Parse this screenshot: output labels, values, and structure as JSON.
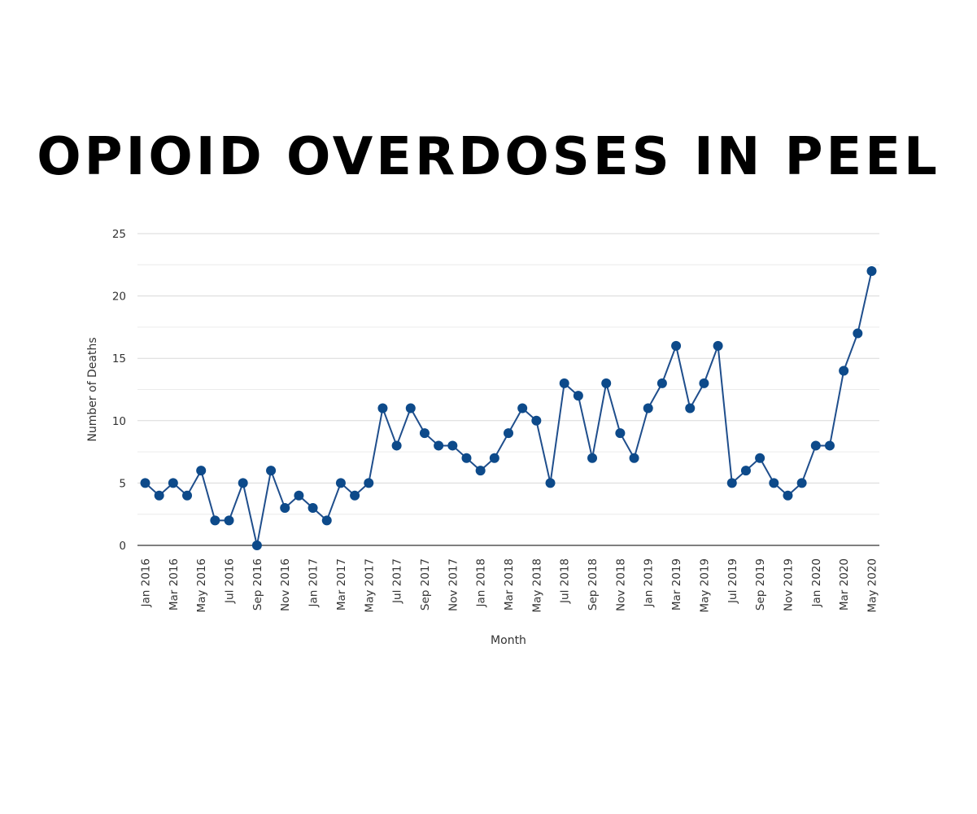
{
  "chart_data": {
    "type": "line",
    "title": "OPIOID OVERDOSES IN PEEL",
    "xlabel": "Month",
    "ylabel": "Number of Deaths",
    "ylim": [
      0,
      25
    ],
    "yticks": [
      0,
      5,
      10,
      15,
      20,
      25
    ],
    "grid": true,
    "x": [
      "Jan 2016",
      "Feb 2016",
      "Mar 2016",
      "Apr 2016",
      "May 2016",
      "Jun 2016",
      "Jul 2016",
      "Aug 2016",
      "Sep 2016",
      "Oct 2016",
      "Nov 2016",
      "Dec 2016",
      "Jan 2017",
      "Feb 2017",
      "Mar 2017",
      "Apr 2017",
      "May 2017",
      "Jun 2017",
      "Jul 2017",
      "Aug 2017",
      "Sep 2017",
      "Oct 2017",
      "Nov 2017",
      "Dec 2017",
      "Jan 2018",
      "Feb 2018",
      "Mar 2018",
      "Apr 2018",
      "May 2018",
      "Jun 2018",
      "Jul 2018",
      "Aug 2018",
      "Sep 2018",
      "Oct 2018",
      "Nov 2018",
      "Dec 2018",
      "Jan 2019",
      "Feb 2019",
      "Mar 2019",
      "Apr 2019",
      "May 2019",
      "Jun 2019",
      "Jul 2019",
      "Aug 2019",
      "Sep 2019",
      "Oct 2019",
      "Nov 2019",
      "Dec 2019",
      "Jan 2020",
      "Feb 2020",
      "Mar 2020",
      "Apr 2020",
      "May 2020"
    ],
    "x_tick_labels": [
      "Jan 2016",
      "Mar 2016",
      "May 2016",
      "Jul 2016",
      "Sep 2016",
      "Nov 2016",
      "Jan 2017",
      "Mar 2017",
      "May 2017",
      "Jul 2017",
      "Sep 2017",
      "Nov 2017",
      "Jan 2018",
      "Mar 2018",
      "May 2018",
      "Jul 2018",
      "Sep 2018",
      "Nov 2018",
      "Jan 2019",
      "Mar 2019",
      "May 2019",
      "Jul 2019",
      "Sep 2019",
      "Nov 2019",
      "Jan 2020",
      "Mar 2020",
      "May 2020"
    ],
    "series": [
      {
        "values": [
          5,
          4,
          5,
          4,
          6,
          2,
          2,
          5,
          0,
          6,
          3,
          4,
          3,
          2,
          5,
          4,
          5,
          11,
          8,
          11,
          9,
          8,
          8,
          7,
          6,
          7,
          9,
          11,
          10,
          5,
          13,
          12,
          7,
          13,
          9,
          7,
          11,
          13,
          16,
          11,
          13,
          16,
          5,
          6,
          7,
          5,
          4,
          5,
          8,
          8,
          14,
          17,
          22
        ]
      }
    ],
    "colors": {
      "line": "#1f4e8c",
      "marker": "#0d4a8a",
      "grid": "#d9d9d9",
      "axis": "#333333"
    }
  }
}
